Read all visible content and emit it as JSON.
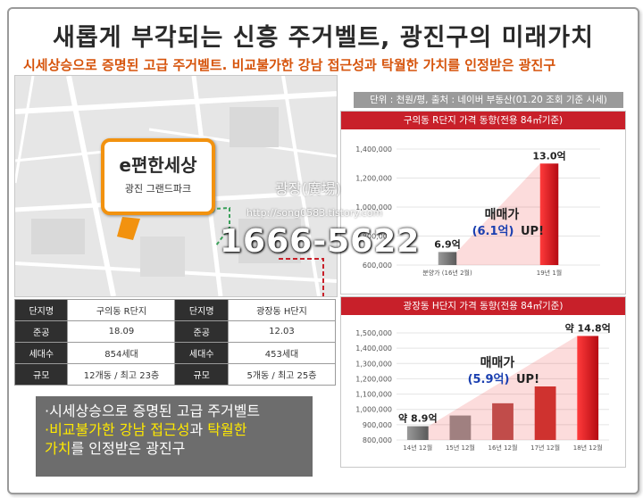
{
  "title": "새롭게 부각되는 신흥 주거벨트, 광진구의 미래가치",
  "subtitle": "시세상승으로 증명된 고급 주거벨트. 비교불가한 강남 접근성과 탁월한 가치를 인정받은 광진구",
  "map": {
    "brand": "e편한세상",
    "brand_sub": "광진 그랜드파크"
  },
  "info_table": [
    {
      "label1": "단지명",
      "value1": "구의동 R단지",
      "label2": "단지명",
      "value2": "광장동 H단지"
    },
    {
      "label1": "준공",
      "value1": "18.09",
      "label2": "준공",
      "value2": "12.03"
    },
    {
      "label1": "세대수",
      "value1": "854세대",
      "label2": "세대수",
      "value2": "453세대"
    },
    {
      "label1": "규모",
      "value1": "12개동 / 최고 23층",
      "label2": "규모",
      "value2": "5개동 / 최고 25층"
    }
  ],
  "note": {
    "line1": "·시세상승으로 증명된 고급 주거벨트",
    "line2_hl": "·비교불가한 강남 접근성",
    "line2_rest": "과 ",
    "line2_hl2": "탁월한",
    "line3_hl": "가치",
    "line3_rest": "를 인정받은 광진구"
  },
  "unit_note": "단위 : 천원/평, 출처 : 네이버 부동산(01.20 조회 기준 시세)",
  "chart_data": [
    {
      "type": "bar",
      "title": "구의동 R단지 가격 동향(전용 84㎡기준)",
      "categories": [
        "분양가\n(16년 2월)",
        "19년 1월"
      ],
      "values": [
        690000,
        1300000
      ],
      "data_labels": [
        "6.9억",
        "13.0억"
      ],
      "y_ticks": [
        "1,400,000",
        "1,200,000",
        "1,000,000",
        "800,000",
        "600,000"
      ],
      "ylim": [
        600000,
        1400000
      ],
      "annotation": {
        "line1": "매매가",
        "value": "(6.1억)",
        "suffix": "UP!"
      }
    },
    {
      "type": "bar",
      "title": "광장동 H단지 가격 동향(전용 84㎡기준)",
      "categories": [
        "14년 12월",
        "15년 12월",
        "16년 12월",
        "17년 12월",
        "18년 12월"
      ],
      "values": [
        890000,
        960000,
        1040000,
        1150000,
        1480000
      ],
      "data_labels": [
        "약 8.9억",
        "",
        "",
        "",
        "약 14.8억"
      ],
      "y_ticks": [
        "1,500,000",
        "1,400,000",
        "1,300,000",
        "1,200,000",
        "1,100,000",
        "1,000,000",
        "900,000",
        "800,000"
      ],
      "ylim": [
        800000,
        1500000
      ],
      "annotation": {
        "line1": "매매가",
        "value": "(5.9억)",
        "suffix": "UP!"
      }
    }
  ],
  "watermark": {
    "name": "광장(廣場)",
    "url": "http://song0583.tistory.com",
    "phone": "1666-5622"
  },
  "colors": {
    "accent": "#d6540c",
    "header_red": "#c8202a",
    "bar_gray": "#8a8a8a",
    "bar_red": "#e3141c",
    "callout_orange": "#f2920f"
  }
}
